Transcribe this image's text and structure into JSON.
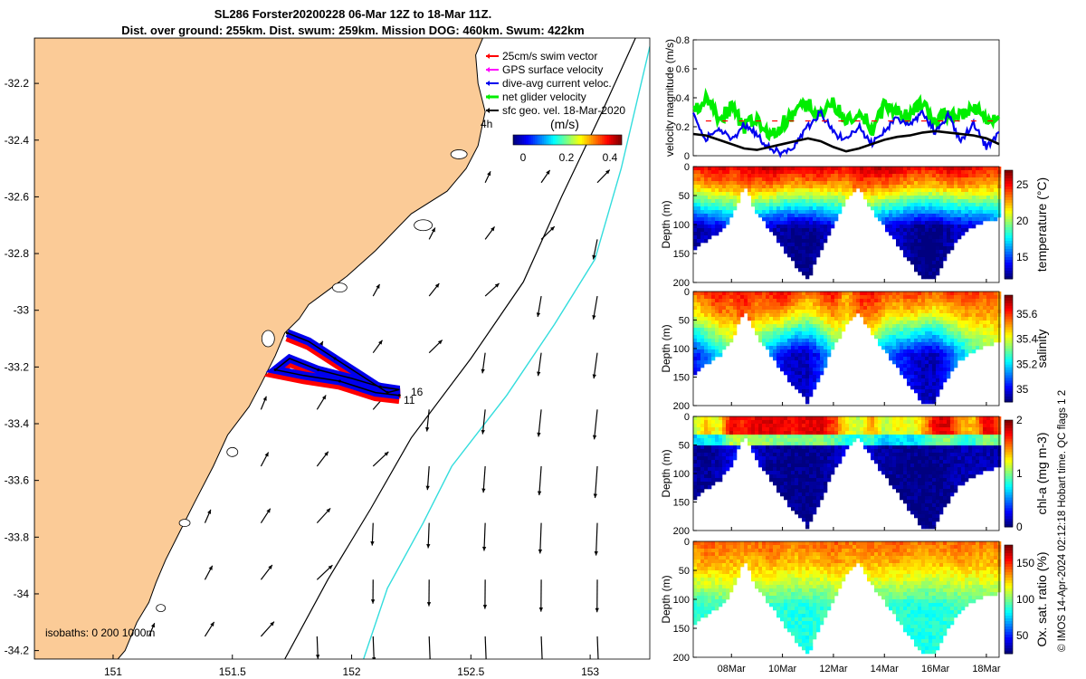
{
  "title_line1": "SL286 Forster20200228 06-Mar 12Z to 18-Mar 11Z.",
  "title_line2": "Dist. over ground: 255km. Dist. swum: 259km. Mission DOG: 460km. Swum: 422km",
  "footer": "© IMOS 14-Apr-2024 02:12:18 Hobart time. QC flags 1  2",
  "colors": {
    "land": "#fbcb97",
    "coast": "#000000",
    "isobath_200": "#000000",
    "isobath_1000": "#33dddd",
    "swim": "#ff0000",
    "gps": "#ff00ff",
    "dive_avg": "#0000ee",
    "net": "#00ee00",
    "geo": "#000000"
  },
  "chart_data": [
    {
      "type": "map",
      "x_ticks": [
        "151",
        "151.5",
        "152",
        "152.5",
        "153"
      ],
      "y_ticks": [
        "-32.2",
        "-32.4",
        "-32.6",
        "-32.8",
        "-33",
        "-33.2",
        "-33.4",
        "-33.6",
        "-33.8",
        "-34",
        "-34.2"
      ],
      "xlim": [
        150.67,
        153.25
      ],
      "ylim": [
        -34.23,
        -32.04
      ],
      "legend": {
        "placement": "top-right",
        "items": [
          {
            "label": "25cm/s swim vector",
            "color": "#ff0000"
          },
          {
            "label": "GPS surface velocity",
            "color": "#ff00ff"
          },
          {
            "label": "dive-avg current veloc.",
            "color": "#0000ee"
          },
          {
            "label": "net glider velocity",
            "color": "#00ee00"
          },
          {
            "label": "sfc geo. vel. 18-Mar-2020",
            "color": "#000000"
          }
        ]
      },
      "colorbar_label": "(m/s)",
      "colorbar_ticks": [
        "0",
        "0.2",
        "0.4"
      ],
      "colorbar_range": [
        0,
        0.5
      ],
      "isobaths_label": "isobaths: 0   200  1000m",
      "annotations": [
        "4h",
        "16",
        "11"
      ],
      "track": [
        [
          151.73,
          -33.08
        ],
        [
          151.82,
          -33.11
        ],
        [
          151.93,
          -33.17
        ],
        [
          152.04,
          -33.23
        ],
        [
          152.15,
          -33.29
        ],
        [
          152.2,
          -33.28
        ],
        [
          152.12,
          -33.27
        ],
        [
          152.0,
          -33.24
        ],
        [
          151.86,
          -33.21
        ],
        [
          151.74,
          -33.17
        ],
        [
          151.68,
          -33.21
        ],
        [
          151.8,
          -33.23
        ],
        [
          151.95,
          -33.25
        ],
        [
          152.1,
          -33.29
        ],
        [
          152.2,
          -33.3
        ]
      ]
    },
    {
      "type": "line",
      "ylabel": "velocity magnitude (m/s)",
      "ylim": [
        0,
        0.8
      ],
      "y_ticks": [
        "0",
        "0.2",
        "0.4",
        "0.6",
        "0.8"
      ],
      "xlim": [
        6.5,
        18.5
      ],
      "series": [
        {
          "color": "#00ee00",
          "x": [
            6.5,
            7,
            7.5,
            8,
            8.5,
            9,
            9.5,
            10,
            10.5,
            11,
            11.5,
            12,
            12.5,
            13,
            13.5,
            14,
            14.5,
            15,
            15.5,
            16,
            16.5,
            17,
            17.5,
            18,
            18.5
          ],
          "values": [
            0.3,
            0.38,
            0.25,
            0.33,
            0.2,
            0.26,
            0.12,
            0.22,
            0.3,
            0.35,
            0.28,
            0.36,
            0.24,
            0.32,
            0.18,
            0.34,
            0.3,
            0.27,
            0.36,
            0.22,
            0.3,
            0.26,
            0.34,
            0.24,
            0.28
          ]
        },
        {
          "color": "#0000ee",
          "x": [
            6.5,
            7,
            7.5,
            8,
            8.5,
            9,
            9.5,
            10,
            10.5,
            11,
            11.5,
            12,
            12.5,
            13,
            13.5,
            14,
            14.5,
            15,
            15.5,
            16,
            16.5,
            17,
            17.5,
            18,
            18.5
          ],
          "values": [
            0.28,
            0.12,
            0.2,
            0.1,
            0.22,
            0.14,
            0.05,
            0.02,
            0.08,
            0.2,
            0.3,
            0.16,
            0.1,
            0.2,
            0.08,
            0.18,
            0.26,
            0.22,
            0.3,
            0.16,
            0.28,
            0.1,
            0.22,
            0.06,
            0.15
          ]
        },
        {
          "color": "#000000",
          "x": [
            6.5,
            7,
            7.5,
            8,
            8.5,
            9,
            9.5,
            10,
            10.5,
            11,
            11.5,
            12,
            12.5,
            13,
            13.5,
            14,
            14.5,
            15,
            15.5,
            16,
            16.5,
            17,
            17.5,
            18,
            18.5
          ],
          "values": [
            0.15,
            0.14,
            0.11,
            0.08,
            0.05,
            0.04,
            0.06,
            0.08,
            0.1,
            0.12,
            0.1,
            0.06,
            0.03,
            0.05,
            0.08,
            0.11,
            0.13,
            0.14,
            0.16,
            0.17,
            0.16,
            0.15,
            0.14,
            0.12,
            0.08
          ]
        }
      ]
    },
    {
      "type": "heatmap",
      "ylabel": "Depth (m)",
      "y_ticks": [
        "0",
        "50",
        "100",
        "150",
        "200"
      ],
      "colorbar_label": "temperature (°C)",
      "colorbar_ticks": [
        "15",
        "20",
        "25"
      ],
      "crange": [
        12,
        27
      ],
      "x": [
        6.5,
        7,
        7.5,
        8,
        8.5,
        9,
        9.5,
        10,
        10.5,
        11,
        11.5,
        12,
        12.5,
        13,
        13.5,
        14,
        14.5,
        15,
        15.5,
        16,
        16.5,
        17,
        17.5,
        18,
        18.5
      ],
      "max_depth": [
        145,
        130,
        115,
        90,
        35,
        80,
        110,
        140,
        170,
        195,
        150,
        100,
        60,
        35,
        75,
        105,
        135,
        165,
        195,
        195,
        150,
        120,
        105,
        95,
        90
      ],
      "surface": [
        25,
        25.5,
        26,
        25,
        25.5,
        26,
        26.5,
        26,
        25.5,
        26,
        26,
        25.5,
        25,
        26,
        26,
        26.5,
        26,
        25.5,
        25,
        25.5,
        26,
        26,
        25.5,
        25,
        25
      ],
      "deep": [
        12.5,
        13,
        13.5,
        15,
        17,
        14,
        13,
        12.5,
        12,
        12,
        12.5,
        13.5,
        15,
        17,
        15,
        13.5,
        13,
        12.5,
        12,
        12,
        12.5,
        13,
        13.5,
        14,
        14.5
      ]
    },
    {
      "type": "heatmap",
      "ylabel": "Depth (m)",
      "y_ticks": [
        "0",
        "50",
        "100",
        "150",
        "200"
      ],
      "colorbar_label": "salinity",
      "colorbar_ticks": [
        "35",
        "35.2",
        "35.4",
        "35.6"
      ],
      "crange": [
        34.9,
        35.75
      ],
      "x": [
        6.5,
        7,
        7.5,
        8,
        8.5,
        9,
        9.5,
        10,
        10.5,
        11,
        11.5,
        12,
        12.5,
        13,
        13.5,
        14,
        14.5,
        15,
        15.5,
        16,
        16.5,
        17,
        17.5,
        18,
        18.5
      ],
      "max_depth": [
        145,
        130,
        115,
        90,
        35,
        80,
        110,
        140,
        170,
        195,
        150,
        100,
        60,
        35,
        75,
        105,
        135,
        165,
        195,
        195,
        150,
        120,
        105,
        95,
        90
      ],
      "surface": [
        35.55,
        35.6,
        35.65,
        35.6,
        35.65,
        35.6,
        35.62,
        35.68,
        35.6,
        35.55,
        35.6,
        35.65,
        35.5,
        35.62,
        35.65,
        35.6,
        35.58,
        35.62,
        35.6,
        35.55,
        35.6,
        35.62,
        35.6,
        35.58,
        35.55
      ],
      "deep": [
        35.0,
        35.1,
        35.2,
        35.3,
        35.4,
        35.25,
        35.1,
        35.0,
        34.95,
        34.95,
        35.05,
        35.2,
        35.3,
        35.4,
        35.25,
        35.1,
        35.05,
        35.0,
        34.95,
        34.95,
        35.05,
        35.15,
        35.25,
        35.3,
        35.35
      ]
    },
    {
      "type": "heatmap",
      "ylabel": "Depth (m)",
      "y_ticks": [
        "0",
        "50",
        "100",
        "150",
        "200"
      ],
      "colorbar_label": "chl-a (mg m-3)",
      "colorbar_ticks": [
        "0",
        "1",
        "2"
      ],
      "crange": [
        0,
        2
      ],
      "x": [
        6.5,
        7,
        7.5,
        8,
        8.5,
        9,
        9.5,
        10,
        10.5,
        11,
        11.5,
        12,
        12.5,
        13,
        13.5,
        14,
        14.5,
        15,
        15.5,
        16,
        16.5,
        17,
        17.5,
        18,
        18.5
      ],
      "max_depth": [
        145,
        130,
        115,
        90,
        35,
        80,
        110,
        140,
        170,
        195,
        150,
        100,
        60,
        35,
        75,
        105,
        135,
        165,
        195,
        195,
        150,
        120,
        105,
        95,
        90
      ],
      "surface": [
        1.2,
        1.5,
        1.3,
        2,
        1.8,
        2,
        2,
        2,
        1.9,
        2,
        2,
        1.8,
        1.4,
        1.2,
        1.6,
        1.2,
        1.4,
        1.3,
        1.5,
        2,
        2,
        1.6,
        1.5,
        2,
        1.8
      ],
      "deep": [
        0.05,
        0.05,
        0.1,
        0.2,
        0.4,
        0.15,
        0.05,
        0.03,
        0.02,
        0.02,
        0.03,
        0.1,
        0.2,
        0.4,
        0.15,
        0.05,
        0.03,
        0.02,
        0.02,
        0.02,
        0.05,
        0.1,
        0.1,
        0.1,
        0.1
      ]
    },
    {
      "type": "heatmap",
      "ylabel": "Depth (m)",
      "y_ticks": [
        "0",
        "50",
        "100",
        "150",
        "200"
      ],
      "colorbar_label": "Ox. sat. ratio (%)",
      "colorbar_ticks": [
        "50",
        "100",
        "150"
      ],
      "crange": [
        25,
        175
      ],
      "x": [
        6.5,
        7,
        7.5,
        8,
        8.5,
        9,
        9.5,
        10,
        10.5,
        11,
        11.5,
        12,
        12.5,
        13,
        13.5,
        14,
        14.5,
        15,
        15.5,
        16,
        16.5,
        17,
        17.5,
        18,
        18.5
      ],
      "max_depth": [
        145,
        130,
        115,
        90,
        35,
        80,
        110,
        140,
        170,
        195,
        150,
        100,
        60,
        35,
        75,
        105,
        135,
        165,
        195,
        195,
        150,
        120,
        105,
        95,
        90
      ],
      "surface": [
        140,
        145,
        142,
        140,
        138,
        140,
        145,
        140,
        138,
        142,
        140,
        145,
        140,
        138,
        142,
        140,
        145,
        140,
        138,
        142,
        140,
        145,
        140,
        138,
        140
      ],
      "deep": [
        88,
        90,
        92,
        95,
        100,
        92,
        90,
        88,
        86,
        85,
        88,
        92,
        95,
        100,
        92,
        90,
        88,
        86,
        85,
        85,
        88,
        90,
        92,
        94,
        95
      ]
    }
  ],
  "date_ticks": [
    "08Mar",
    "10Mar",
    "12Mar",
    "14Mar",
    "16Mar",
    "18Mar"
  ]
}
